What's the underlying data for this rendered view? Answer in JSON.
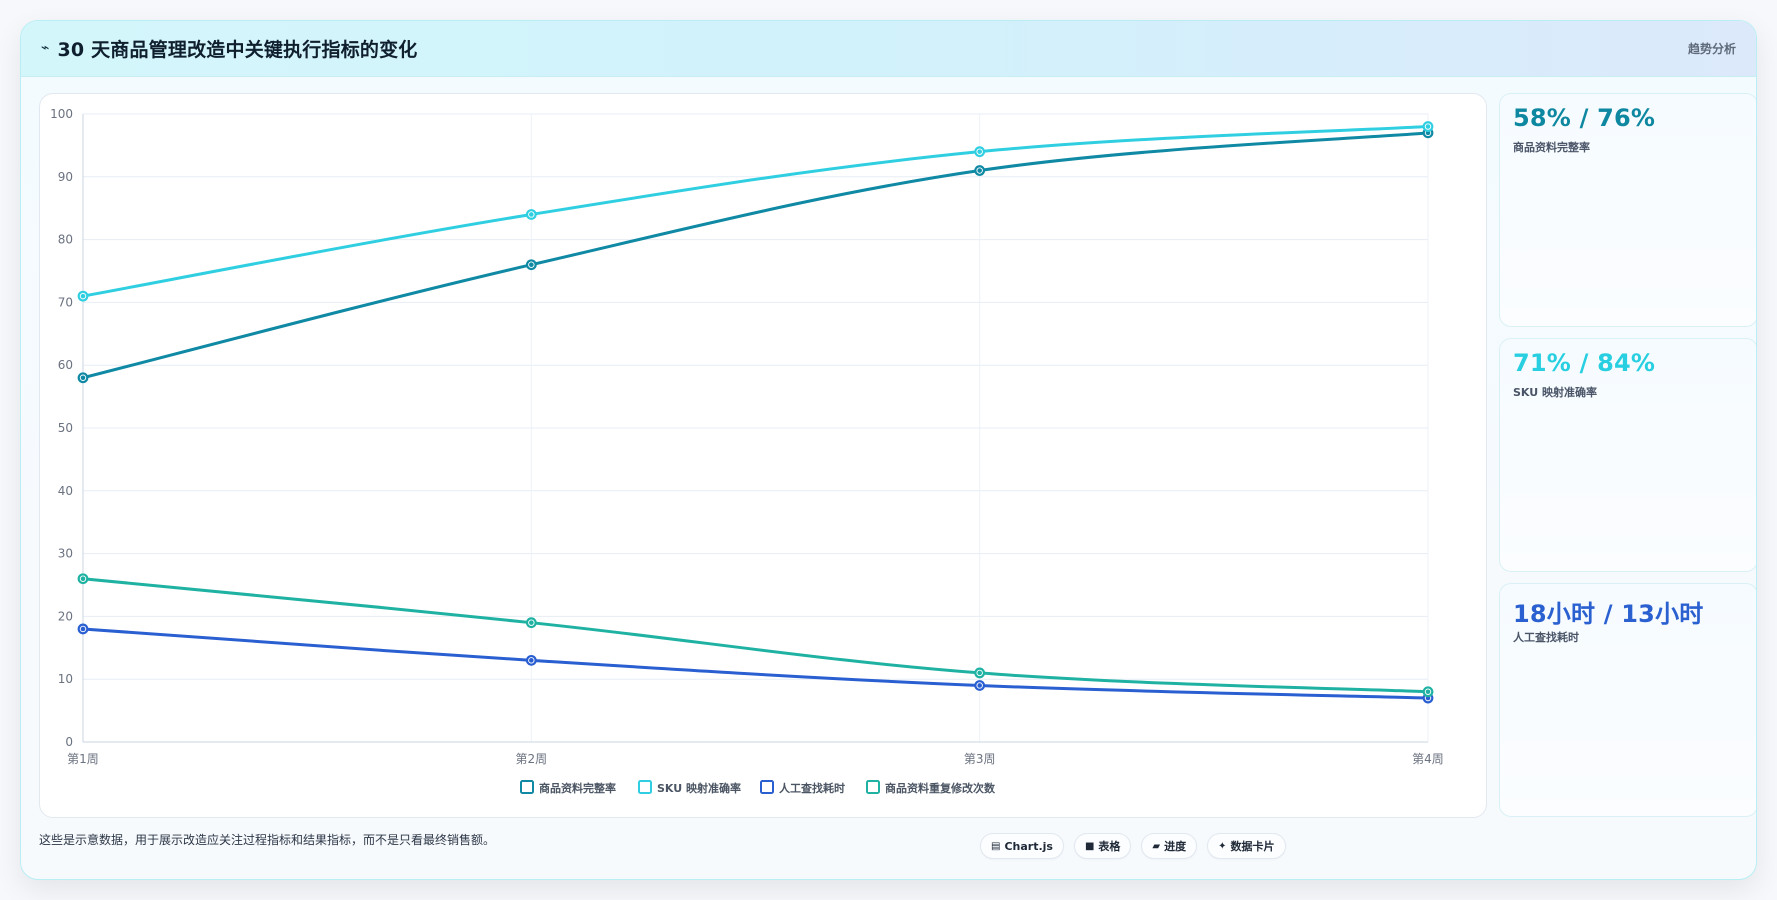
{
  "header": {
    "icon": "trend-line-icon",
    "title": "30 天商品管理改造中关键执行指标的变化",
    "right_label": "趋势分析"
  },
  "chart_data": {
    "type": "line",
    "title": "",
    "xlabel": "",
    "ylabel": "",
    "categories": [
      "第1周",
      "第2周",
      "第3周",
      "第4周"
    ],
    "ylim": [
      0,
      100
    ],
    "yticks": [
      0,
      10,
      20,
      30,
      40,
      50,
      60,
      70,
      80,
      90,
      100
    ],
    "grid": true,
    "legend_position": "bottom",
    "series": [
      {
        "name": "商品资料完整率",
        "values": [
          58,
          76,
          91,
          97
        ],
        "color": "#0f89a4"
      },
      {
        "name": "SKU 映射准确率",
        "values": [
          71,
          84,
          94,
          98
        ],
        "color": "#2fcfe1"
      },
      {
        "name": "人工查找耗时",
        "values": [
          18,
          13,
          9,
          7
        ],
        "color": "#2a5fd1"
      },
      {
        "name": "商品资料重复修改次数",
        "values": [
          26,
          19,
          11,
          8
        ],
        "color": "#1fb2a3"
      }
    ]
  },
  "side_cards": [
    {
      "value": "58% / 76%",
      "label": "商品资料完整率",
      "color": "#0e87a0"
    },
    {
      "value": "71% / 84%",
      "label": "SKU 映射准确率",
      "color": "#27cfe0"
    },
    {
      "value": "18小时 / 13小时",
      "label": "人工查找耗时",
      "color": "#2a60cf"
    }
  ],
  "footer": {
    "note": "这些是示意数据，用于展示改造应关注过程指标和结果指标，而不是只看最终销售额。",
    "chips": [
      {
        "icon": "chart-icon",
        "glyph": "▤",
        "label": "Chart.js"
      },
      {
        "icon": "table-icon",
        "glyph": "■",
        "label": "表格"
      },
      {
        "icon": "progress-icon",
        "glyph": "▰",
        "label": "进度"
      },
      {
        "icon": "sparkle-icon",
        "glyph": "✦",
        "label": "数据卡片"
      }
    ]
  }
}
